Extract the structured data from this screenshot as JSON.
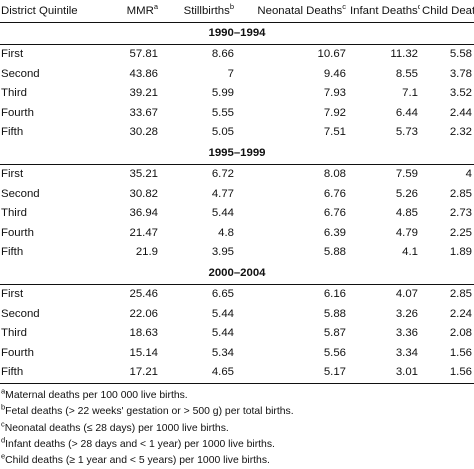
{
  "table": {
    "headers": [
      {
        "label": "District Quintile",
        "sup": ""
      },
      {
        "label": "MMR",
        "sup": "a"
      },
      {
        "label": "Stillbirths",
        "sup": "b"
      },
      {
        "label": "Neonatal Deaths",
        "sup": "c"
      },
      {
        "label": "Infant Deaths",
        "sup": "d"
      },
      {
        "label": "Child Deaths",
        "sup": "e"
      }
    ],
    "periods": [
      {
        "label": "1990–1994",
        "rows": [
          [
            "First",
            "57.81",
            "8.66",
            "10.67",
            "11.32",
            "5.58"
          ],
          [
            "Second",
            "43.86",
            "7",
            "9.46",
            "8.55",
            "3.78"
          ],
          [
            "Third",
            "39.21",
            "5.99",
            "7.93",
            "7.1",
            "3.52"
          ],
          [
            "Fourth",
            "33.67",
            "5.55",
            "7.92",
            "6.44",
            "2.44"
          ],
          [
            "Fifth",
            "30.28",
            "5.05",
            "7.51",
            "5.73",
            "2.32"
          ]
        ]
      },
      {
        "label": "1995–1999",
        "rows": [
          [
            "First",
            "35.21",
            "6.72",
            "8.08",
            "7.59",
            "4"
          ],
          [
            "Second",
            "30.82",
            "4.77",
            "6.76",
            "5.26",
            "2.85"
          ],
          [
            "Third",
            "36.94",
            "5.44",
            "6.76",
            "4.85",
            "2.73"
          ],
          [
            "Fourth",
            "21.47",
            "4.8",
            "6.39",
            "4.79",
            "2.25"
          ],
          [
            "Fifth",
            "21.9",
            "3.95",
            "5.88",
            "4.1",
            "1.89"
          ]
        ]
      },
      {
        "label": "2000–2004",
        "rows": [
          [
            "First",
            "25.46",
            "6.65",
            "6.16",
            "4.07",
            "2.85"
          ],
          [
            "Second",
            "22.06",
            "5.44",
            "5.88",
            "3.26",
            "2.24"
          ],
          [
            "Third",
            "18.63",
            "5.44",
            "5.87",
            "3.36",
            "2.08"
          ],
          [
            "Fourth",
            "15.14",
            "5.34",
            "5.56",
            "3.34",
            "1.56"
          ],
          [
            "Fifth",
            "17.21",
            "4.65",
            "5.17",
            "3.01",
            "1.56"
          ]
        ]
      }
    ]
  },
  "notes": [
    {
      "sup": "a",
      "text": "Maternal deaths per 100 000 live births."
    },
    {
      "sup": "b",
      "text": "Fetal deaths (> 22 weeks' gestation or > 500 g) per total births."
    },
    {
      "sup": "c",
      "text": "Neonatal deaths (≤ 28 days) per 1000 live births."
    },
    {
      "sup": "d",
      "text": "Infant deaths (> 28 days and < 1 year) per 1000 live births."
    },
    {
      "sup": "e",
      "text": "Child deaths (≥ 1 year and < 5 years) per 1000 live births."
    }
  ]
}
